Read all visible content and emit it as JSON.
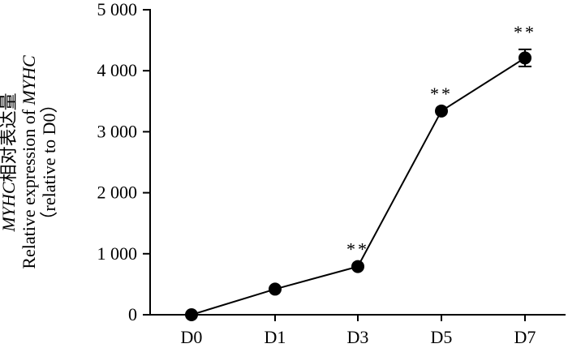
{
  "chart_data": {
    "type": "line",
    "categories": [
      "D0",
      "D1",
      "D3",
      "D5",
      "D7"
    ],
    "series": [
      {
        "values": [
          0,
          420,
          790,
          3340,
          4210
        ],
        "error": [
          0,
          0,
          0,
          0,
          140
        ],
        "significance": [
          "",
          "",
          "**",
          "**",
          "**"
        ]
      }
    ],
    "ylabel_lines": [
      [
        "MYHC",
        "相对表达量"
      ],
      [
        "Relative expression of ",
        "MYHC"
      ],
      [
        "（relative to D0）"
      ]
    ],
    "yticks": [
      0,
      1000,
      2000,
      3000,
      4000,
      5000
    ],
    "ytick_labels": [
      "0",
      "1 000",
      "2 000",
      "3 000",
      "4 000",
      "5 000"
    ],
    "ylim": [
      0,
      5000
    ],
    "grid": false,
    "legend": "none"
  }
}
